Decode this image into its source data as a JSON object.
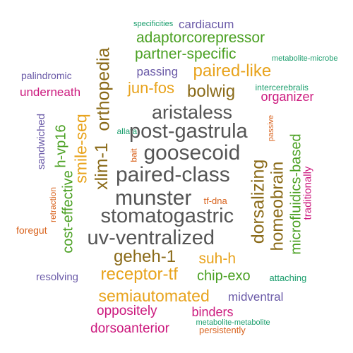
{
  "palette": {
    "gray": "#555555",
    "olive": "#8a6a18",
    "orange": "#e8a31c",
    "green": "#4aa022",
    "magenta": "#cc1a7e",
    "purple": "#6b5ba8",
    "teal": "#1b9e6d",
    "burnt_orange": "#d9641f"
  },
  "words": [
    {
      "text": "specificities",
      "color": "#1b9e6d",
      "rotated": false
    },
    {
      "text": "cardiacum",
      "color": "#6b5ba8",
      "rotated": false
    },
    {
      "text": "adaptorcorepressor",
      "color": "#4aa022",
      "rotated": false
    },
    {
      "text": "partner-specific",
      "color": "#4aa022",
      "rotated": false
    },
    {
      "text": "metabolite-microbe",
      "color": "#1b9e6d",
      "rotated": false
    },
    {
      "text": "passing",
      "color": "#6b5ba8",
      "rotated": false
    },
    {
      "text": "paired-like",
      "color": "#e8a31c",
      "rotated": false
    },
    {
      "text": "palindromic",
      "color": "#6b5ba8",
      "rotated": false
    },
    {
      "text": "underneath",
      "color": "#cc1a7e",
      "rotated": false
    },
    {
      "text": "jun-fos",
      "color": "#e8a31c",
      "rotated": false
    },
    {
      "text": "bolwig",
      "color": "#8a6a18",
      "rotated": false
    },
    {
      "text": "intercerebralis",
      "color": "#1b9e6d",
      "rotated": false
    },
    {
      "text": "organizer",
      "color": "#cc1a7e",
      "rotated": false
    },
    {
      "text": "orthopedia",
      "color": "#8a6a18",
      "rotated": true
    },
    {
      "text": "smile-seq",
      "color": "#e8a31c",
      "rotated": true
    },
    {
      "text": "xlim-1",
      "color": "#8a6a18",
      "rotated": true
    },
    {
      "text": "h-vp16",
      "color": "#4aa022",
      "rotated": true
    },
    {
      "text": "sandwiched",
      "color": "#6b5ba8",
      "rotated": true
    },
    {
      "text": "cost-effective",
      "color": "#4aa022",
      "rotated": true
    },
    {
      "text": "retraction",
      "color": "#d9641f",
      "rotated": true
    },
    {
      "text": "allata",
      "color": "#1b9e6d",
      "rotated": false
    },
    {
      "text": "bait",
      "color": "#d9641f",
      "rotated": true
    },
    {
      "text": "aristaless",
      "color": "#555555",
      "rotated": false
    },
    {
      "text": "post-gastrula",
      "color": "#555555",
      "rotated": false
    },
    {
      "text": "goosecoid",
      "color": "#555555",
      "rotated": false
    },
    {
      "text": "paired-class",
      "color": "#555555",
      "rotated": false
    },
    {
      "text": "munster",
      "color": "#555555",
      "rotated": false
    },
    {
      "text": "tf-dna",
      "color": "#d9641f",
      "rotated": false
    },
    {
      "text": "stomatogastric",
      "color": "#555555",
      "rotated": false
    },
    {
      "text": "uv-ventralized",
      "color": "#555555",
      "rotated": false
    },
    {
      "text": "dorsalizing",
      "color": "#8a6a18",
      "rotated": true
    },
    {
      "text": "homeobrain",
      "color": "#8a6a18",
      "rotated": true
    },
    {
      "text": "microfluidics-based",
      "color": "#4aa022",
      "rotated": true
    },
    {
      "text": "passive",
      "color": "#d9641f",
      "rotated": true
    },
    {
      "text": "traditionally",
      "color": "#cc1a7e",
      "rotated": true
    },
    {
      "text": "foregut",
      "color": "#d9641f",
      "rotated": false
    },
    {
      "text": "geheh-1",
      "color": "#8a6a18",
      "rotated": false
    },
    {
      "text": "suh-h",
      "color": "#e8a31c",
      "rotated": false
    },
    {
      "text": "receptor-tf",
      "color": "#e8a31c",
      "rotated": false
    },
    {
      "text": "chip-exo",
      "color": "#4aa022",
      "rotated": false
    },
    {
      "text": "resolving",
      "color": "#6b5ba8",
      "rotated": false
    },
    {
      "text": "attaching",
      "color": "#1b9e6d",
      "rotated": false
    },
    {
      "text": "semiautomated",
      "color": "#e8a31c",
      "rotated": false
    },
    {
      "text": "midventral",
      "color": "#6b5ba8",
      "rotated": false
    },
    {
      "text": "oppositely",
      "color": "#cc1a7e",
      "rotated": false
    },
    {
      "text": "binders",
      "color": "#cc1a7e",
      "rotated": false
    },
    {
      "text": "metabolite-metabolite",
      "color": "#1b9e6d",
      "rotated": false
    },
    {
      "text": "dorsoanterior",
      "color": "#cc1a7e",
      "rotated": false
    },
    {
      "text": "persistently",
      "color": "#d9641f",
      "rotated": false
    }
  ]
}
